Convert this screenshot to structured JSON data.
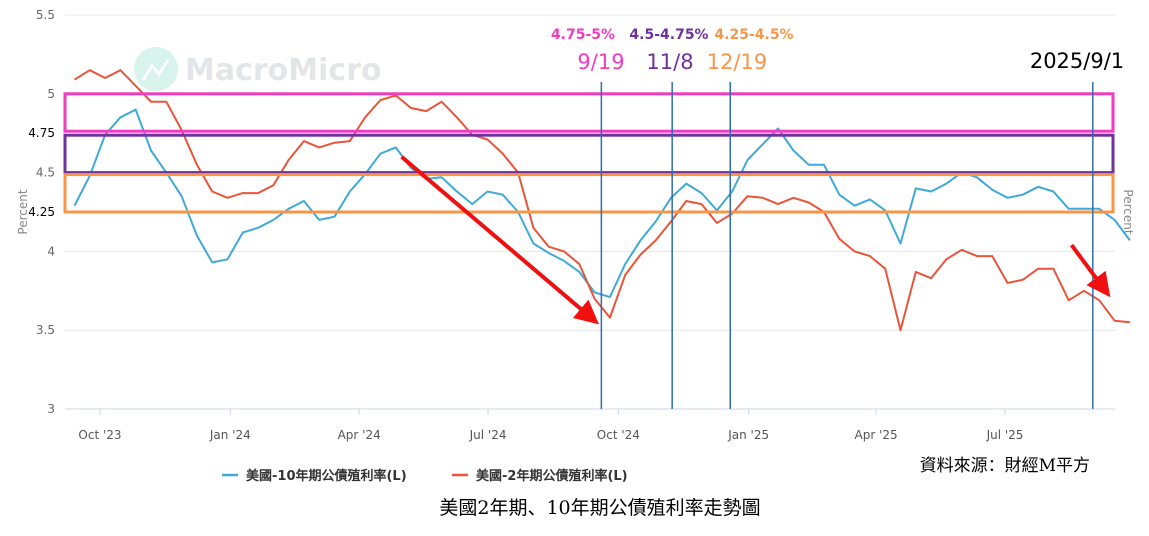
{
  "chart_data": {
    "type": "line",
    "title": "美國2年期、10年期公債殖利率走勢圖",
    "source": "資料來源：財經M平方",
    "watermark": "MacroMicro",
    "ylabel_left": "Percent",
    "ylabel_right": "Percent",
    "ylim": [
      3,
      5.5
    ],
    "yticks": [
      "5.5",
      "5",
      "4.5",
      "4",
      "3.5",
      "3"
    ],
    "yticks_extra": [
      "4.75",
      "4.25"
    ],
    "xtick_labels": [
      "Oct '23",
      "Jan '24",
      "Apr '24",
      "Jul '24",
      "Oct '24",
      "Jan '25",
      "Apr '25",
      "Jul '25"
    ],
    "xtick_dates": [
      "2023-10-01",
      "2024-01-01",
      "2024-04-01",
      "2024-07-01",
      "2024-10-01",
      "2025-01-01",
      "2025-04-01",
      "2025-07-01"
    ],
    "x_start": "2023-09-13",
    "x_step_days": 10.8,
    "grid": true,
    "legend_position": "bottom",
    "series": [
      {
        "name": "美國-10年期公債殖利率(L)",
        "color": "#3fa9d8",
        "values": [
          4.29,
          4.48,
          4.74,
          4.85,
          4.9,
          4.64,
          4.5,
          4.35,
          4.1,
          3.93,
          3.95,
          4.12,
          4.15,
          4.2,
          4.27,
          4.32,
          4.2,
          4.22,
          4.38,
          4.49,
          4.62,
          4.66,
          4.53,
          4.46,
          4.47,
          4.38,
          4.3,
          4.38,
          4.36,
          4.25,
          4.05,
          3.99,
          3.94,
          3.87,
          3.74,
          3.71,
          3.92,
          4.07,
          4.19,
          4.34,
          4.43,
          4.37,
          4.26,
          4.38,
          4.58,
          4.68,
          4.78,
          4.64,
          4.55,
          4.55,
          4.36,
          4.29,
          4.33,
          4.26,
          4.05,
          4.4,
          4.38,
          4.43,
          4.5,
          4.47,
          4.39,
          4.34,
          4.36,
          4.41,
          4.38,
          4.27,
          4.27,
          4.27,
          4.2,
          4.07
        ]
      },
      {
        "name": "美國-2年期公債殖利率(L)",
        "color": "#e8553a",
        "values": [
          5.09,
          5.15,
          5.1,
          5.15,
          5.05,
          4.95,
          4.95,
          4.77,
          4.55,
          4.38,
          4.34,
          4.37,
          4.37,
          4.42,
          4.58,
          4.7,
          4.66,
          4.69,
          4.7,
          4.85,
          4.96,
          4.99,
          4.91,
          4.89,
          4.95,
          4.85,
          4.74,
          4.71,
          4.62,
          4.5,
          4.15,
          4.03,
          4.0,
          3.92,
          3.7,
          3.58,
          3.85,
          3.98,
          4.07,
          4.19,
          4.32,
          4.3,
          4.18,
          4.24,
          4.35,
          4.34,
          4.3,
          4.34,
          4.31,
          4.25,
          4.08,
          4.0,
          3.97,
          3.89,
          3.5,
          3.87,
          3.83,
          3.95,
          4.01,
          3.97,
          3.97,
          3.8,
          3.82,
          3.89,
          3.89,
          3.69,
          3.75,
          3.69,
          3.56,
          3.55
        ]
      }
    ],
    "bands": [
      {
        "label": "4.75-5%",
        "range": [
          4.75,
          5.0
        ],
        "color": "#f03cbf",
        "date_label": "9/19",
        "date": "2024-09-19"
      },
      {
        "label": "4.5-4.75%",
        "range": [
          4.5,
          4.75
        ],
        "color": "#7030a0",
        "date_label": "11/8",
        "date": "2024-11-08"
      },
      {
        "label": "4.25-4.5%",
        "range": [
          4.25,
          4.5
        ],
        "color": "#f79646",
        "date_label": "12/19",
        "date": "2024-12-19"
      }
    ],
    "marker_line": {
      "label": "2025/9/1",
      "date": "2025-09-01",
      "color": "#000000"
    },
    "vline_color": "#2e6db4",
    "arrows": [
      {
        "from": [
          "2024-05-01",
          4.6
        ],
        "to": [
          "2024-09-13",
          3.57
        ]
      },
      {
        "from": [
          "2025-08-17",
          4.04
        ],
        "to": [
          "2025-09-10",
          3.75
        ]
      }
    ]
  }
}
